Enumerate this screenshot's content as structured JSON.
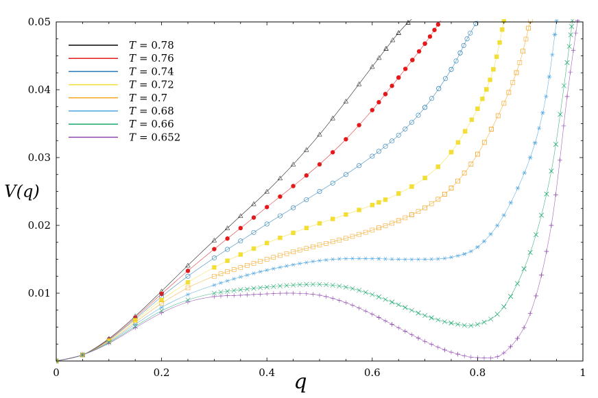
{
  "chart_data": {
    "type": "line",
    "title": "",
    "xlabel": "q",
    "ylabel": "V(q)",
    "xlim": [
      0,
      1
    ],
    "ylim": [
      0,
      0.05
    ],
    "xticks": [
      0,
      0.2,
      0.4,
      0.6,
      0.8,
      1
    ],
    "xtick_labels": [
      "0",
      "0.2",
      "0.4",
      "0.6",
      "0.8",
      "1"
    ],
    "yticks": [
      0.01,
      0.02,
      0.03,
      0.04,
      0.05
    ],
    "ytick_labels": [
      "0.01",
      "0.02",
      "0.03",
      "0.04",
      "0.05"
    ],
    "grid": false,
    "legend_position": "top-left",
    "series": [
      {
        "name": "T = 0.78",
        "label_var": "T",
        "label_val": "= 0.78",
        "color": "#000000",
        "marker": "triangle",
        "points": [
          [
            0,
            0
          ],
          [
            0.05,
            0.0009
          ],
          [
            0.1,
            0.0033
          ],
          [
            0.15,
            0.0066
          ],
          [
            0.2,
            0.0103
          ],
          [
            0.25,
            0.0141
          ],
          [
            0.3,
            0.0178
          ],
          [
            0.35,
            0.0214
          ],
          [
            0.4,
            0.025
          ],
          [
            0.45,
            0.029
          ],
          [
            0.5,
            0.0334
          ],
          [
            0.55,
            0.0383
          ],
          [
            0.6,
            0.0434
          ],
          [
            0.65,
            0.0484
          ],
          [
            0.68,
            0.0508
          ]
        ]
      },
      {
        "name": "T = 0.76",
        "label_var": "T",
        "label_val": "= 0.76",
        "color": "#e31a1c",
        "marker": "filled-circle",
        "points": [
          [
            0,
            0
          ],
          [
            0.05,
            0.0009
          ],
          [
            0.1,
            0.0032
          ],
          [
            0.15,
            0.0064
          ],
          [
            0.2,
            0.0099
          ],
          [
            0.25,
            0.0133
          ],
          [
            0.3,
            0.0165
          ],
          [
            0.35,
            0.0196
          ],
          [
            0.4,
            0.0227
          ],
          [
            0.45,
            0.0258
          ],
          [
            0.5,
            0.029
          ],
          [
            0.55,
            0.0327
          ],
          [
            0.6,
            0.037
          ],
          [
            0.65,
            0.0418
          ],
          [
            0.7,
            0.0468
          ],
          [
            0.73,
            0.0502
          ]
        ]
      },
      {
        "name": "T = 0.74",
        "label_var": "T",
        "label_val": "= 0.74",
        "color": "#1f78b4",
        "marker": "circle",
        "points": [
          [
            0,
            0
          ],
          [
            0.05,
            0.0009
          ],
          [
            0.1,
            0.0031
          ],
          [
            0.15,
            0.0062
          ],
          [
            0.2,
            0.0095
          ],
          [
            0.25,
            0.0125
          ],
          [
            0.3,
            0.0152
          ],
          [
            0.35,
            0.0177
          ],
          [
            0.4,
            0.0202
          ],
          [
            0.45,
            0.0226
          ],
          [
            0.5,
            0.025
          ],
          [
            0.55,
            0.0275
          ],
          [
            0.6,
            0.0302
          ],
          [
            0.65,
            0.0333
          ],
          [
            0.7,
            0.0374
          ],
          [
            0.75,
            0.043
          ],
          [
            0.78,
            0.0475
          ],
          [
            0.8,
            0.0502
          ]
        ]
      },
      {
        "name": "T = 0.72",
        "label_var": "T",
        "label_val": "= 0.72",
        "color": "#f2de35",
        "marker": "filled-square",
        "points": [
          [
            0,
            0
          ],
          [
            0.05,
            0.0009
          ],
          [
            0.1,
            0.003
          ],
          [
            0.15,
            0.006
          ],
          [
            0.2,
            0.009
          ],
          [
            0.25,
            0.0116
          ],
          [
            0.3,
            0.0138
          ],
          [
            0.35,
            0.0157
          ],
          [
            0.4,
            0.0174
          ],
          [
            0.45,
            0.0189
          ],
          [
            0.5,
            0.0203
          ],
          [
            0.55,
            0.0216
          ],
          [
            0.6,
            0.023
          ],
          [
            0.65,
            0.0247
          ],
          [
            0.7,
            0.027
          ],
          [
            0.75,
            0.0308
          ],
          [
            0.8,
            0.0372
          ],
          [
            0.83,
            0.043
          ],
          [
            0.85,
            0.0502
          ]
        ]
      },
      {
        "name": "T = 0.7",
        "label_var": "T",
        "label_val": "= 0.7",
        "color": "#f5a623",
        "marker": "square",
        "points": [
          [
            0,
            0
          ],
          [
            0.05,
            0.0009
          ],
          [
            0.1,
            0.0029
          ],
          [
            0.15,
            0.0057
          ],
          [
            0.2,
            0.0085
          ],
          [
            0.25,
            0.0108
          ],
          [
            0.3,
            0.0125
          ],
          [
            0.35,
            0.0138
          ],
          [
            0.4,
            0.015
          ],
          [
            0.45,
            0.0161
          ],
          [
            0.5,
            0.0171
          ],
          [
            0.55,
            0.0181
          ],
          [
            0.6,
            0.0193
          ],
          [
            0.65,
            0.0207
          ],
          [
            0.7,
            0.0226
          ],
          [
            0.75,
            0.0255
          ],
          [
            0.8,
            0.0305
          ],
          [
            0.85,
            0.038
          ],
          [
            0.88,
            0.044
          ],
          [
            0.9,
            0.0502
          ]
        ]
      },
      {
        "name": "T = 0.68",
        "label_var": "T",
        "label_val": "= 0.68",
        "color": "#4aa3df",
        "marker": "asterisk",
        "points": [
          [
            0,
            0
          ],
          [
            0.05,
            0.0009
          ],
          [
            0.1,
            0.0028
          ],
          [
            0.15,
            0.0054
          ],
          [
            0.2,
            0.0079
          ],
          [
            0.25,
            0.0098
          ],
          [
            0.3,
            0.0112
          ],
          [
            0.35,
            0.0124
          ],
          [
            0.4,
            0.0134
          ],
          [
            0.45,
            0.0142
          ],
          [
            0.5,
            0.0148
          ],
          [
            0.55,
            0.0151
          ],
          [
            0.6,
            0.0151
          ],
          [
            0.65,
            0.015
          ],
          [
            0.7,
            0.015
          ],
          [
            0.75,
            0.0153
          ],
          [
            0.8,
            0.0168
          ],
          [
            0.85,
            0.0215
          ],
          [
            0.9,
            0.03
          ],
          [
            0.93,
            0.039
          ],
          [
            0.95,
            0.0502
          ]
        ]
      },
      {
        "name": "T = 0.66",
        "label_var": "T",
        "label_val": "= 0.66",
        "color": "#1aa86b",
        "marker": "cross",
        "points": [
          [
            0,
            0
          ],
          [
            0.05,
            0.0009
          ],
          [
            0.1,
            0.0027
          ],
          [
            0.15,
            0.0051
          ],
          [
            0.2,
            0.0074
          ],
          [
            0.25,
            0.009
          ],
          [
            0.3,
            0.01
          ],
          [
            0.35,
            0.0105
          ],
          [
            0.4,
            0.0109
          ],
          [
            0.45,
            0.0112
          ],
          [
            0.5,
            0.0113
          ],
          [
            0.55,
            0.0109
          ],
          [
            0.6,
            0.0098
          ],
          [
            0.65,
            0.0083
          ],
          [
            0.7,
            0.0067
          ],
          [
            0.75,
            0.0056
          ],
          [
            0.8,
            0.0054
          ],
          [
            0.85,
            0.008
          ],
          [
            0.9,
            0.016
          ],
          [
            0.94,
            0.028
          ],
          [
            0.97,
            0.044
          ],
          [
            0.98,
            0.0502
          ]
        ]
      },
      {
        "name": "T = 0.652",
        "label_var": "T",
        "label_val": "= 0.652",
        "color": "#8e44ad",
        "marker": "plus",
        "points": [
          [
            0,
            0
          ],
          [
            0.05,
            0.0009
          ],
          [
            0.1,
            0.0026
          ],
          [
            0.15,
            0.0049
          ],
          [
            0.2,
            0.0071
          ],
          [
            0.25,
            0.0087
          ],
          [
            0.3,
            0.0095
          ],
          [
            0.35,
            0.0097
          ],
          [
            0.4,
            0.0099
          ],
          [
            0.45,
            0.01
          ],
          [
            0.5,
            0.0097
          ],
          [
            0.55,
            0.0086
          ],
          [
            0.6,
            0.0069
          ],
          [
            0.65,
            0.0049
          ],
          [
            0.7,
            0.0029
          ],
          [
            0.75,
            0.0013
          ],
          [
            0.8,
            0.0005
          ],
          [
            0.85,
            0.0012
          ],
          [
            0.9,
            0.007
          ],
          [
            0.94,
            0.02
          ],
          [
            0.97,
            0.039
          ],
          [
            0.99,
            0.0502
          ]
        ]
      }
    ]
  }
}
